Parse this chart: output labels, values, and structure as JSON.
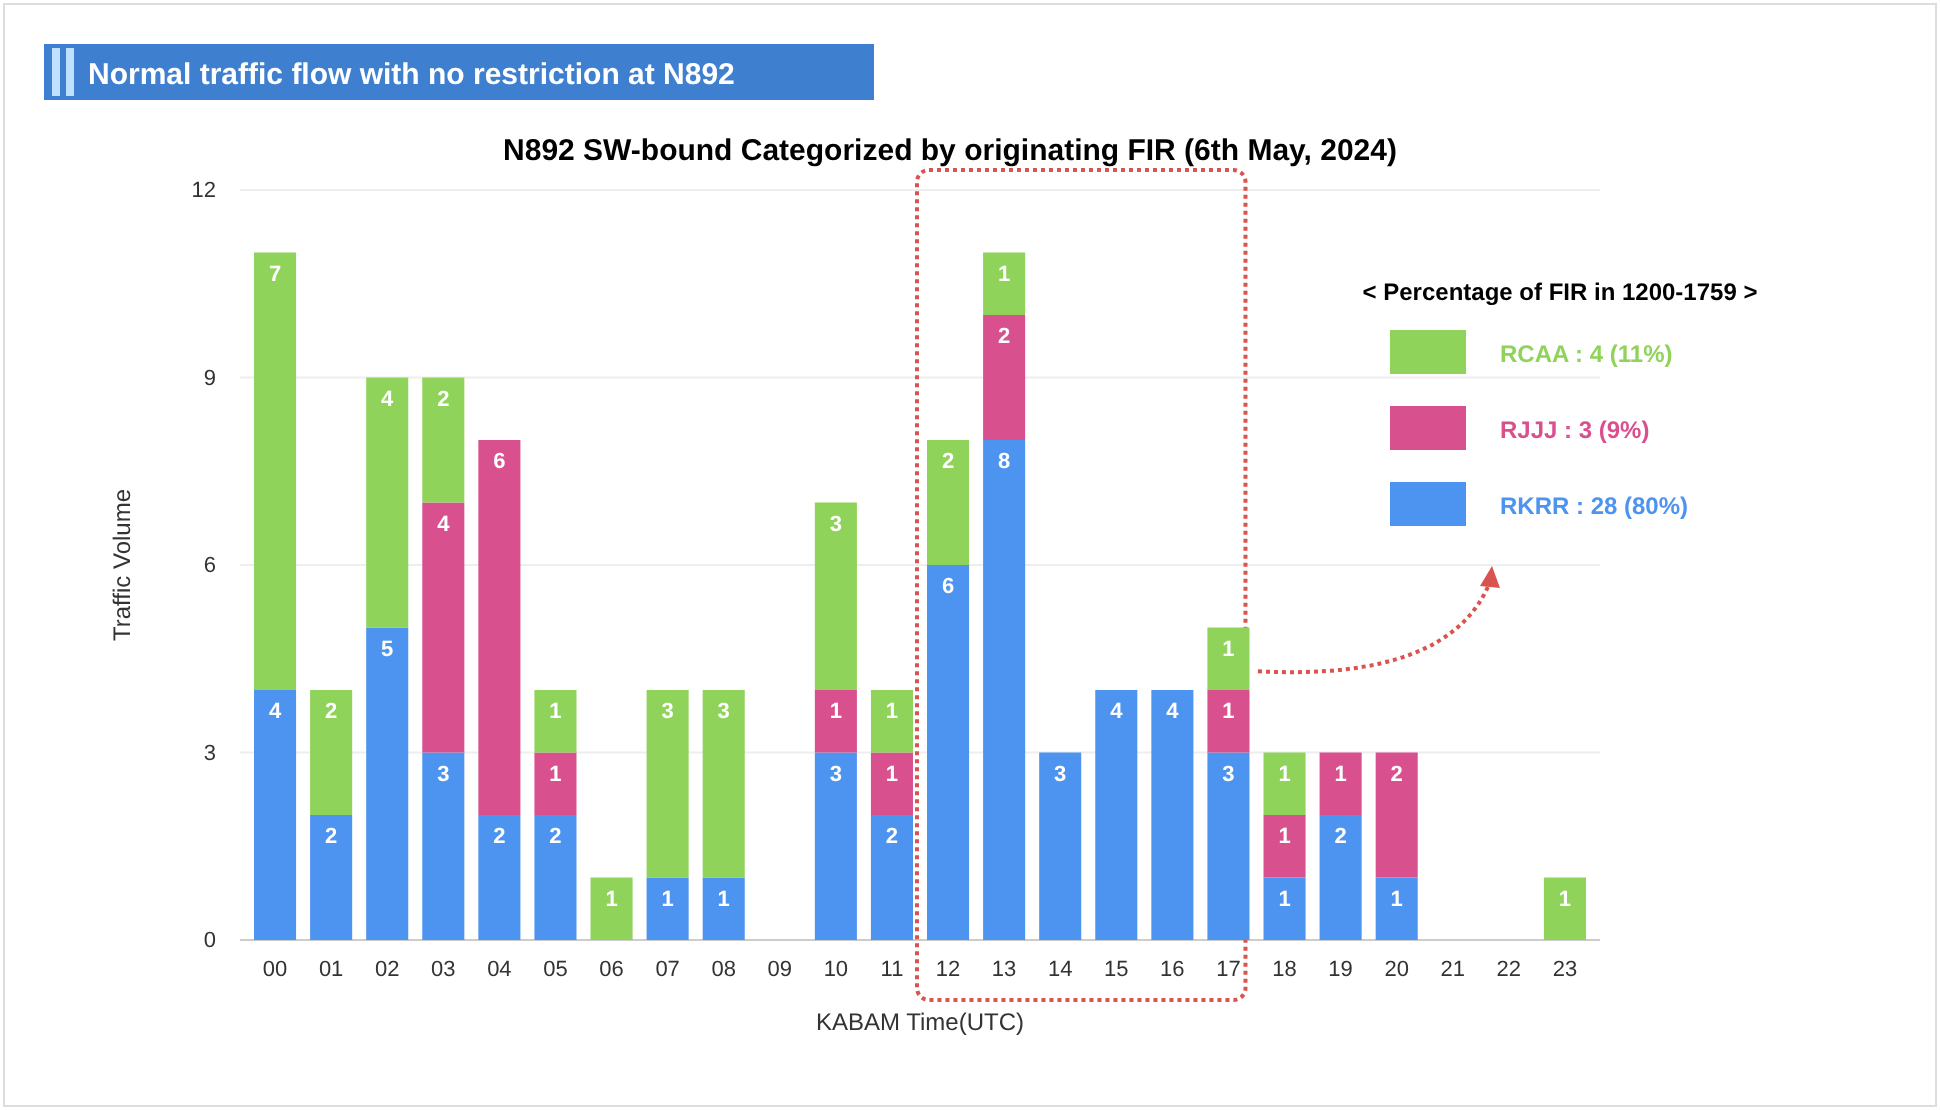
{
  "chart_data": {
    "type": "bar",
    "title": "Normal traffic flow with no restriction at N892",
    "subtitle": "N892 SW-bound Categorized by originating FIR (6th May, 2024)",
    "xlabel": "KABAM Time(UTC)",
    "ylabel": "Traffic Volume",
    "legend_title": "< Percentage of FIR in 1200-1759 >",
    "categories": [
      "00",
      "01",
      "02",
      "03",
      "04",
      "05",
      "06",
      "07",
      "08",
      "09",
      "10",
      "11",
      "12",
      "13",
      "14",
      "15",
      "16",
      "17",
      "18",
      "19",
      "20",
      "21",
      "22",
      "23"
    ],
    "stacked": true,
    "series": [
      {
        "name": "RKRR : 28 (80%)",
        "color": "#4d94f0",
        "values": [
          4,
          2,
          5,
          3,
          2,
          2,
          null,
          1,
          1,
          null,
          3,
          2,
          6,
          8,
          3,
          4,
          4,
          3,
          1,
          2,
          1,
          null,
          null,
          null
        ]
      },
      {
        "name": "RJJJ : 3 (9%)",
        "color": "#d9508f",
        "values": [
          null,
          null,
          null,
          4,
          6,
          1,
          null,
          null,
          null,
          null,
          1,
          1,
          null,
          2,
          null,
          null,
          null,
          1,
          1,
          1,
          2,
          null,
          null,
          null
        ]
      },
      {
        "name": "RCAA : 4 (11%)",
        "color": "#8fd35a",
        "values": [
          7,
          2,
          4,
          2,
          null,
          1,
          1,
          3,
          3,
          null,
          3,
          1,
          2,
          1,
          null,
          null,
          null,
          1,
          1,
          null,
          null,
          null,
          null,
          1
        ]
      }
    ],
    "ylim": [
      0,
      12
    ],
    "yticks": [
      0,
      3,
      6,
      9,
      12
    ],
    "grid": "y",
    "legend": "right",
    "data_labels": true
  }
}
